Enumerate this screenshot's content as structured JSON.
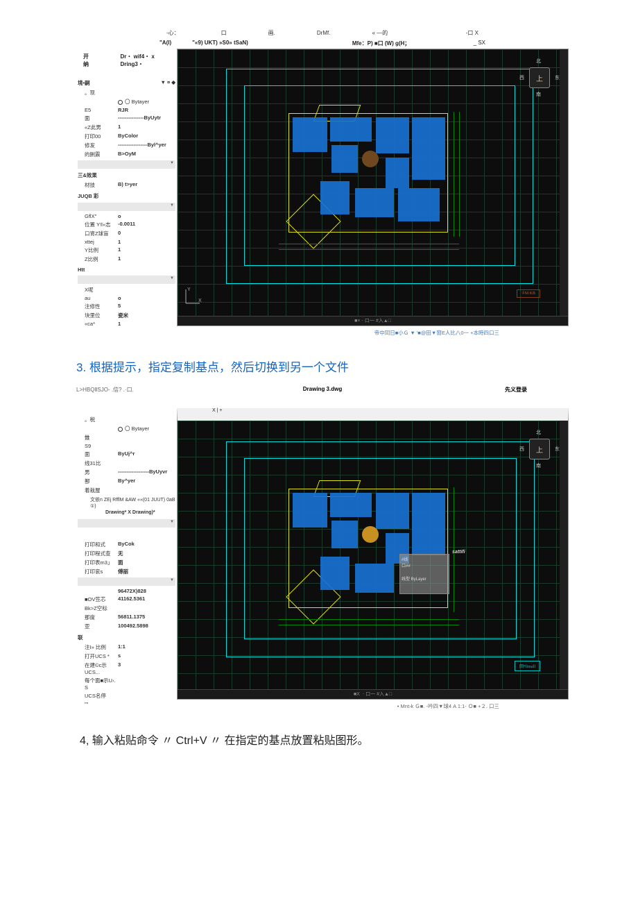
{
  "screenshot1": {
    "menubar": {
      "items": [
        "-心：",
        "口",
        "画.",
        "DrMf.",
        "« —的"
      ],
      "close": "-口 X"
    },
    "toolbar": {
      "left": "\"A(l)",
      "mid": "\"«9) UKT) »S0» tSaN)",
      "right": "Mfe：P) ■口 (W) g(H；",
      "far": "_ SX"
    },
    "subtoolbar": {
      "left": "开纳",
      "right": "Dr・ wif4・ x Dring3・"
    },
    "properties": {
      "header": {
        "left": "境•嗣",
        "right": "▼ ¤ ◆"
      },
      "sub": "。现",
      "layer_label": "〇 Bytayer",
      "rows1": [
        {
          "label": "E5",
          "value": "RJR"
        },
        {
          "label": "面",
          "value": "---------------ByUytr"
        },
        {
          "label": "«Z此男",
          "value": "1"
        },
        {
          "label": "打印00",
          "value": "ByColor"
        },
        {
          "label": "修发",
          "value": "-----------------Byl^yer"
        },
        {
          "label": "的脷震",
          "value": "B>OyM"
        }
      ],
      "group2": "三&效果",
      "rows2": [
        {
          "label": "材技",
          "value": "B) t>yer"
        }
      ],
      "group3": "JUQB 彩",
      "rows3": [
        {
          "label": "GflX\"",
          "value": "o"
        },
        {
          "label": "位置 Y!l»志",
          "value": "-0.0011"
        },
        {
          "label": "口冑Z球盲",
          "value": "0"
        },
        {
          "label": "xttej",
          "value": "1"
        },
        {
          "label": "Y比例",
          "value": "1"
        },
        {
          "label": "Z比例",
          "value": "1"
        }
      ],
      "group4": "Htt",
      "rows4": [
        {
          "label": "X呢",
          "value": ""
        },
        {
          "label": "au",
          "value": "o"
        },
        {
          "label": "注修性",
          "value": "5"
        },
        {
          "label": "块里位",
          "value": "瓷米"
        },
        {
          "label": "«ca*",
          "value": "1"
        }
      ]
    },
    "compass": {
      "n": "北",
      "e": "东",
      "s": "南",
      "w": "西",
      "c": "上"
    },
    "stamp": "®M KB",
    "footer": "帝中同日■小Ｇ ▼ '■@田▼窗E人比八0一 +本時四口三"
  },
  "step3": "3. 根据提示，指定复制基点，然后切换到另一个文件",
  "screenshot2": {
    "title_left": "L>HBQⅡSJO- .信?  .·口.",
    "title_center": "Drawing 3.dwg",
    "title_right": "先义登录",
    "tabs": "X | +",
    "properties": {
      "header": "。税",
      "layer_label": "〇 Bytayer",
      "rows1": [
        {
          "label": "雔",
          "value": ""
        },
        {
          "label": "S9",
          "value": ""
        },
        {
          "label": "面",
          "value": "ByUj^r"
        },
        {
          "label": "线31比",
          "value": ""
        },
        {
          "label": "男",
          "value": "------------------ByUyvr"
        },
        {
          "label": "鄯",
          "value": "By^yer"
        },
        {
          "label": "着栽屋",
          "value": ""
        }
      ],
      "note1": "文依n ZEj RfflM &AW ««(01 JUUT) 0aB ①)",
      "note2": "Drawing* X Drawing)*",
      "rows2": [
        {
          "label": "打印和式",
          "value": "ByCok"
        },
        {
          "label": "打印程式查",
          "value": "无"
        },
        {
          "label": "打印表m3」",
          "value": "面"
        },
        {
          "label": "打印衮s",
          "value": "傅丽"
        }
      ],
      "rows3": [
        {
          "label": "",
          "value": "96472X)828"
        },
        {
          "label": "■OV笠芯",
          "value": "41162.5361"
        },
        {
          "label": "Bk>Z空标",
          "value": ""
        },
        {
          "label": "那度",
          "value": "56811.1375"
        },
        {
          "label": "亚",
          "value": "100492.5898"
        }
      ],
      "group4": "联",
      "rows4": [
        {
          "label": "注I» 比例",
          "value": "1:1"
        },
        {
          "label": "打开UCS *",
          "value": "s"
        },
        {
          "label": "在建©c示UCS...",
          "value": "3"
        },
        {
          "label": "每个面■示U›. S",
          "value": ""
        },
        {
          "label": "UCS名停",
          "value": ""
        },
        {
          "label": "\"\"",
          "value": ""
        }
      ]
    },
    "compass": {
      "n": "北",
      "e": "东",
      "s": "南",
      "w": "西",
      "c": "上"
    },
    "paste_label": "sattifi",
    "paste_box_lines": [
      "#线",
      "口##",
      "线型   ByLayer"
    ],
    "stamp": "回*limall",
    "footer": "• Mnt›k Ｇ■.  -吟四▼球4 A 1:1- Ｏ■ +２. 口三"
  },
  "step4": "4, 输入粘贴命令 〃 Ctrl+V 〃 在指定的基点放置粘贴图形。"
}
